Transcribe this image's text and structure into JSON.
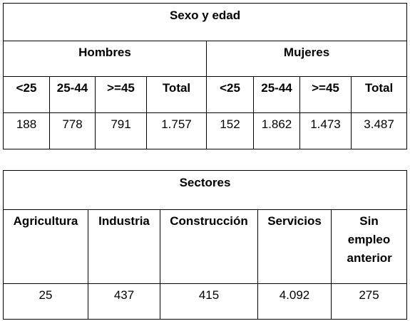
{
  "sexo_edad": {
    "title": "Sexo y edad",
    "groups": [
      "Hombres",
      "Mujeres"
    ],
    "headers": [
      "<25",
      "25-44",
      ">=45",
      "Total",
      "<25",
      "25-44",
      ">=45",
      "Total"
    ],
    "values": [
      "188",
      "778",
      "791",
      "1.757",
      "152",
      "1.862",
      "1.473",
      "3.487"
    ]
  },
  "sectores": {
    "title": "Sectores",
    "headers": [
      "Agricultura",
      "Industria",
      "Construcción",
      "Servicios",
      "Sin empleo anterior"
    ],
    "values": [
      "25",
      "437",
      "415",
      "4.092",
      "275"
    ]
  }
}
